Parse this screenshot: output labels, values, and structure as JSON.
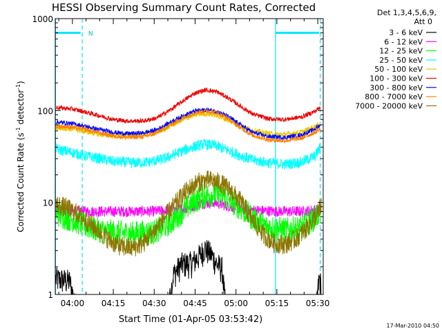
{
  "chart_data": {
    "type": "line",
    "title": "HESSI Observing Summary Count Rates, Corrected",
    "xlabel": "Start Time (01-Apr-05 03:53:42)",
    "ylabel_main": "Corrected Count Rate (s",
    "ylabel_sup1": "-1",
    "ylabel_mid": " detector",
    "ylabel_sup2": "-1",
    "ylabel_end": ")",
    "y_scale": "log",
    "ylim": [
      1,
      1000
    ],
    "xlim_minutes": [
      233.7,
      332.0
    ],
    "x_ticks": [
      {
        "label": "04:00",
        "minute": 240
      },
      {
        "label": "04:15",
        "minute": 255
      },
      {
        "label": "04:30",
        "minute": 270
      },
      {
        "label": "04:45",
        "minute": 285
      },
      {
        "label": "05:00",
        "minute": 300
      },
      {
        "label": "05:15",
        "minute": 315
      },
      {
        "label": "05:30",
        "minute": 330
      }
    ],
    "y_ticks": [
      {
        "label": "1",
        "value": 1
      },
      {
        "label": "10",
        "value": 10
      },
      {
        "label": "100",
        "value": 100
      },
      {
        "label": "1000",
        "value": 1000
      }
    ],
    "legend_header": [
      "Det 1,3,4,5,6,9,",
      "Att 0"
    ],
    "legend_position": "right",
    "series": [
      {
        "name": "3 - 6 keV",
        "color": "#000000",
        "values": [
          [
            233.9,
            1.8
          ],
          [
            239.0,
            1.7
          ],
          [
            240.8,
            1.0
          ],
          [
            275.6,
            1.0
          ],
          [
            277.0,
            2.0
          ],
          [
            280.0,
            2.6
          ],
          [
            284.0,
            2.7
          ],
          [
            287.0,
            3.3
          ],
          [
            288.5,
            3.9
          ],
          [
            291.0,
            3.3
          ],
          [
            293.0,
            2.6
          ],
          [
            295.0,
            2.3
          ],
          [
            296.0,
            1.0
          ],
          [
            329.6,
            1.0
          ],
          [
            330.5,
            1.8
          ],
          [
            331.3,
            1.5
          ]
        ]
      },
      {
        "name": "6 - 12 keV",
        "color": "#ff00ff",
        "values": [
          [
            234,
            8.2
          ],
          [
            240,
            8.0
          ],
          [
            250,
            8.0
          ],
          [
            260,
            8.0
          ],
          [
            270,
            8.0
          ],
          [
            280,
            8.4
          ],
          [
            288,
            9.8
          ],
          [
            292,
            10.0
          ],
          [
            298,
            9.0
          ],
          [
            305,
            8.3
          ],
          [
            315,
            8.0
          ],
          [
            325,
            8.0
          ],
          [
            331,
            8.5
          ]
        ]
      },
      {
        "name": "12 - 25 keV",
        "color": "#00ff00",
        "values": [
          [
            234,
            7.5
          ],
          [
            240,
            6.5
          ],
          [
            245,
            5.5
          ],
          [
            250,
            5.0
          ],
          [
            255,
            4.7
          ],
          [
            262,
            4.6
          ],
          [
            270,
            4.8
          ],
          [
            276,
            6.0
          ],
          [
            281,
            8.3
          ],
          [
            285,
            10.5
          ],
          [
            289,
            12.0
          ],
          [
            293,
            12.5
          ],
          [
            297,
            11.0
          ],
          [
            301,
            9.0
          ],
          [
            306,
            6.8
          ],
          [
            311,
            5.5
          ],
          [
            318,
            5.0
          ],
          [
            324,
            5.3
          ],
          [
            329,
            6.8
          ],
          [
            331,
            8.0
          ]
        ]
      },
      {
        "name": "25 - 50 keV",
        "color": "#00ffff",
        "values": [
          [
            234,
            38
          ],
          [
            240,
            35
          ],
          [
            245,
            32
          ],
          [
            250,
            30
          ],
          [
            255,
            28
          ],
          [
            262,
            27
          ],
          [
            268,
            27.5
          ],
          [
            274,
            30
          ],
          [
            279,
            35
          ],
          [
            284,
            40
          ],
          [
            288,
            43
          ],
          [
            292,
            42
          ],
          [
            296,
            38
          ],
          [
            301,
            33
          ],
          [
            306,
            29
          ],
          [
            312,
            27
          ],
          [
            318,
            26
          ],
          [
            324,
            27.5
          ],
          [
            329,
            32
          ],
          [
            331,
            40
          ]
        ]
      },
      {
        "name": "50 - 100 keV",
        "color": "#e6c700",
        "values": [
          [
            234,
            65
          ],
          [
            240,
            63
          ],
          [
            245,
            59
          ],
          [
            250,
            55
          ],
          [
            255,
            53
          ],
          [
            262,
            53
          ],
          [
            268,
            55
          ],
          [
            274,
            63
          ],
          [
            279,
            76
          ],
          [
            284,
            88
          ],
          [
            288,
            93
          ],
          [
            292,
            90
          ],
          [
            296,
            81
          ],
          [
            301,
            70
          ],
          [
            306,
            61
          ],
          [
            312,
            56
          ],
          [
            318,
            55
          ],
          [
            324,
            58
          ],
          [
            329,
            67
          ],
          [
            331,
            72
          ]
        ]
      },
      {
        "name": "100 - 300 keV",
        "color": "#ee0000",
        "values": [
          [
            234,
            108
          ],
          [
            240,
            104
          ],
          [
            245,
            96
          ],
          [
            250,
            88
          ],
          [
            255,
            80
          ],
          [
            260,
            77
          ],
          [
            266,
            77
          ],
          [
            271,
            83
          ],
          [
            276,
            102
          ],
          [
            281,
            130
          ],
          [
            285,
            155
          ],
          [
            289,
            168
          ],
          [
            293,
            160
          ],
          [
            297,
            138
          ],
          [
            301,
            115
          ],
          [
            306,
            92
          ],
          [
            312,
            81
          ],
          [
            318,
            80
          ],
          [
            324,
            85
          ],
          [
            329,
            98
          ],
          [
            331,
            110
          ]
        ]
      },
      {
        "name": "300 - 800 keV",
        "color": "#0000ff",
        "values": [
          [
            234,
            75
          ],
          [
            240,
            72
          ],
          [
            245,
            67
          ],
          [
            250,
            62
          ],
          [
            255,
            58
          ],
          [
            260,
            56
          ],
          [
            266,
            57
          ],
          [
            271,
            62
          ],
          [
            276,
            75
          ],
          [
            281,
            89
          ],
          [
            285,
            99
          ],
          [
            289,
            102
          ],
          [
            293,
            98
          ],
          [
            297,
            86
          ],
          [
            301,
            72
          ],
          [
            306,
            58
          ],
          [
            312,
            52
          ],
          [
            318,
            51
          ],
          [
            324,
            54
          ],
          [
            329,
            63
          ],
          [
            331,
            70
          ]
        ]
      },
      {
        "name": "800 - 7000 keV",
        "color": "#ff7f00",
        "values": [
          [
            234,
            68
          ],
          [
            240,
            66
          ],
          [
            245,
            62
          ],
          [
            250,
            57
          ],
          [
            255,
            53
          ],
          [
            260,
            51
          ],
          [
            266,
            52
          ],
          [
            271,
            57
          ],
          [
            276,
            70
          ],
          [
            281,
            84
          ],
          [
            285,
            95
          ],
          [
            289,
            99
          ],
          [
            293,
            95
          ],
          [
            297,
            82
          ],
          [
            301,
            67
          ],
          [
            306,
            54
          ],
          [
            312,
            48
          ],
          [
            318,
            47
          ],
          [
            324,
            50
          ],
          [
            329,
            58
          ],
          [
            331,
            64
          ]
        ]
      },
      {
        "name": "7000 - 20000 keV",
        "color": "#8b7500",
        "values": [
          [
            234,
            9.5
          ],
          [
            238,
            8.7
          ],
          [
            242,
            7.5
          ],
          [
            246,
            6.0
          ],
          [
            250,
            4.8
          ],
          [
            254,
            3.8
          ],
          [
            258,
            3.3
          ],
          [
            262,
            3.2
          ],
          [
            266,
            3.6
          ],
          [
            270,
            4.9
          ],
          [
            274,
            7.0
          ],
          [
            278,
            9.8
          ],
          [
            282,
            13.5
          ],
          [
            286,
            16.5
          ],
          [
            290,
            17.5
          ],
          [
            294,
            16.5
          ],
          [
            298,
            13.5
          ],
          [
            302,
            10.0
          ],
          [
            306,
            6.5
          ],
          [
            310,
            4.5
          ],
          [
            314,
            3.6
          ],
          [
            318,
            3.5
          ],
          [
            322,
            4.0
          ],
          [
            326,
            5.3
          ],
          [
            330,
            7.5
          ],
          [
            331.5,
            9.5
          ]
        ]
      }
    ],
    "annotations": {
      "solid_verticals_minutes": [
        233.8,
        314.5
      ],
      "dashed_verticals_minutes": [
        243.6,
        330.9
      ],
      "top_bars": [
        [
          234.0,
          243.0
        ],
        [
          314.6,
          330.5
        ]
      ],
      "top_bar_label": "N",
      "top_bar_label_minute": 244.8,
      "top_bar_value": 700
    },
    "timestamp": "17-Mar-2010 04:50"
  }
}
